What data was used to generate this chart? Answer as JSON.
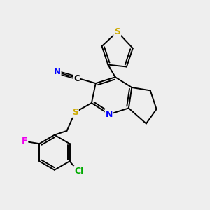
{
  "background_color": "#eeeeee",
  "bond_color": "#000000",
  "atom_colors": {
    "S": "#ccaa00",
    "N": "#0000ff",
    "F": "#ee00ee",
    "Cl": "#00aa00",
    "C": "#000000"
  },
  "figsize": [
    3.0,
    3.0
  ],
  "dpi": 100
}
